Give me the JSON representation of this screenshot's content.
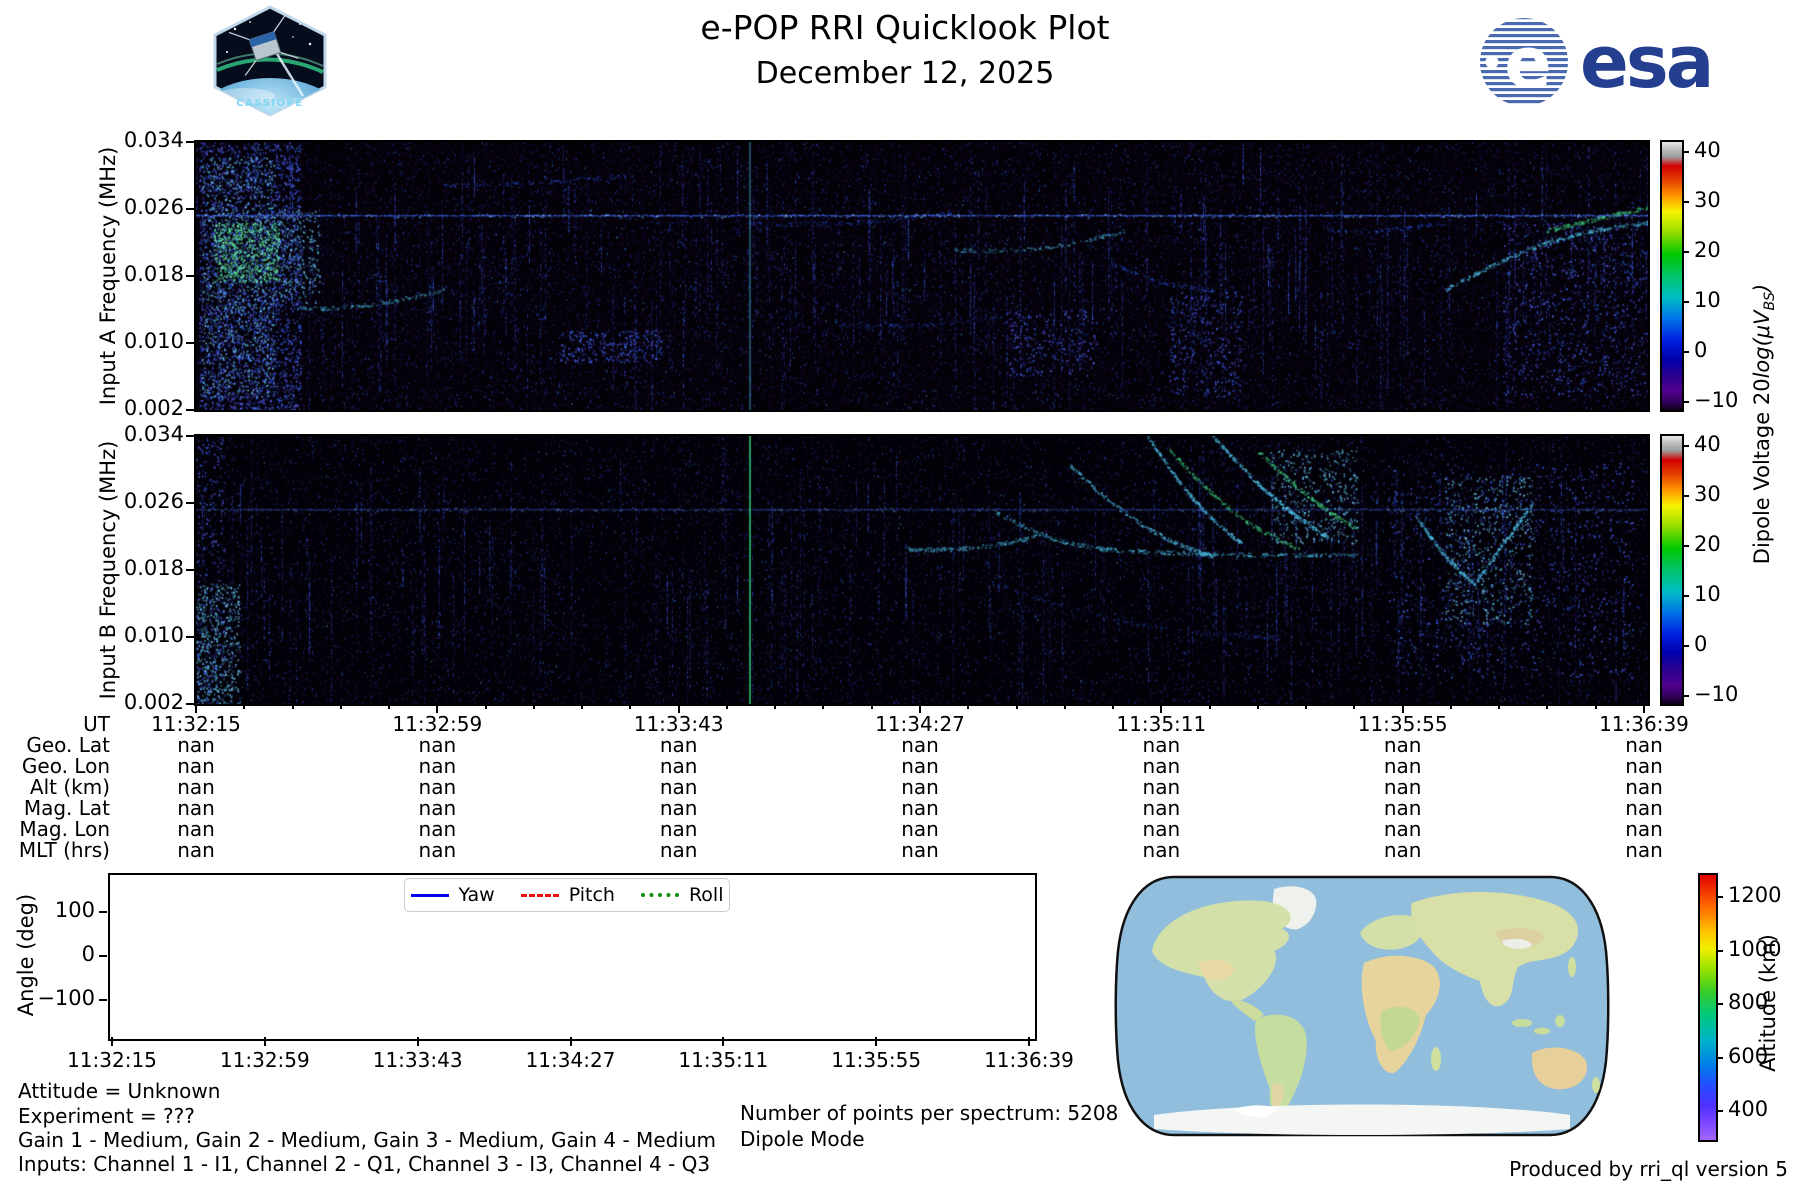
{
  "header": {
    "title": "e-POP RRI Quicklook Plot",
    "subtitle": "December 12, 2025",
    "cassiope_wordmark": "CASSIOPE",
    "esa_wordmark": "esa"
  },
  "colorbar_freq": {
    "label_prefix": "Dipole Voltage 20",
    "label_math": "log(μV",
    "label_sub": "BS",
    "label_close": ")",
    "ticks": [
      40,
      30,
      20,
      10,
      0,
      -10
    ],
    "ticks_display": [
      "40",
      "30",
      "20",
      "10",
      "0",
      "−10"
    ]
  },
  "panelA": {
    "ylabel": "Input A Frequency (MHz)",
    "yticks": [
      "0.034",
      "0.026",
      "0.018",
      "0.010",
      "0.002"
    ]
  },
  "panelB": {
    "ylabel": "Input B Frequency (MHz)",
    "yticks": [
      "0.034",
      "0.026",
      "0.018",
      "0.010",
      "0.002"
    ]
  },
  "ephemeris": {
    "row_labels": [
      "UT",
      "Geo. Lat",
      "Geo. Lon",
      "Alt (km)",
      "Mag. Lat",
      "Mag. Lon",
      "MLT (hrs)"
    ],
    "times": [
      "11:32:15",
      "11:32:59",
      "11:33:43",
      "11:34:27",
      "11:35:11",
      "11:35:55",
      "11:36:39"
    ],
    "nan_value": "nan"
  },
  "angle_plot": {
    "ylabel": "Angle (deg)",
    "yticks_display": [
      "100",
      "0",
      "−100"
    ],
    "yticks": [
      100,
      0,
      -100
    ],
    "xticks": [
      "11:32:15",
      "11:32:59",
      "11:33:43",
      "11:34:27",
      "11:35:11",
      "11:35:55",
      "11:36:39"
    ],
    "legend": [
      {
        "label": "Yaw",
        "color": "#0000ee",
        "style": "solid"
      },
      {
        "label": "Pitch",
        "color": "#ee1111",
        "style": "dashed"
      },
      {
        "label": "Roll",
        "color": "#0a8f0a",
        "style": "dotted"
      }
    ]
  },
  "map_panel": {
    "colorbar_label": "Altitude (km)",
    "colorbar_ticks": [
      1200,
      1000,
      800,
      600,
      400
    ]
  },
  "footer": {
    "attitude": "Attitude = Unknown",
    "experiment": "Experiment = ???",
    "gains": "Gain 1 - Medium, Gain 2 - Medium, Gain 3 - Medium, Gain 4 - Medium",
    "inputs": "Inputs: Channel 1 - I1, Channel 2 - Q1, Channel 3 - I3, Channel 4 - Q3",
    "points_per_spectrum": "Number of points per spectrum: 5208",
    "mode": "Dipole Mode",
    "produced_by": "Produced by rri_ql version 5"
  },
  "chart_data": [
    {
      "type": "heatmap",
      "panel": "Input A",
      "ylabel": "Input A Frequency (MHz)",
      "ylim_mhz": [
        0.002,
        0.034
      ],
      "yticks_mhz": [
        0.034,
        0.026,
        0.018,
        0.01,
        0.002
      ],
      "x_ut": [
        "11:32:15",
        "11:32:59",
        "11:33:43",
        "11:34:27",
        "11:35:11",
        "11:35:55",
        "11:36:39"
      ],
      "colorbar": {
        "label": "Dipole Voltage 20log(μV_BS)",
        "ticks": [
          40,
          30,
          20,
          10,
          0,
          -10
        ],
        "range": [
          -10,
          40
        ],
        "cmap": "nipy_spectral"
      },
      "features": {
        "background": "near-black with sparse blue/purple noise and vertical streaks",
        "horizontal_line_mhz": 0.025,
        "left_edge_broadband_burst": true,
        "bright_vertical_line_frac": 0.381,
        "right_side": "faint cyan traces, rising trace at far right"
      },
      "render": {
        "seed": 20251212,
        "bg": "#040109",
        "noise": 0.05,
        "streaks": 210,
        "hline": {
          "y": 0.272,
          "a": 0.85
        },
        "vline": {
          "x": 0.381,
          "rgb": [
            70,
            190,
            225
          ],
          "a": 0.5
        },
        "clusters": [
          {
            "x": 0.002,
            "y": 0.0,
            "w": 0.07,
            "h": 1.0,
            "n": 2600,
            "pal": "blue"
          },
          {
            "x": 0.004,
            "y": 0.05,
            "w": 0.05,
            "h": 0.9,
            "n": 900,
            "pal": "cyan"
          },
          {
            "x": 0.012,
            "y": 0.3,
            "w": 0.045,
            "h": 0.22,
            "n": 700,
            "pal": "green"
          },
          {
            "x": 0.055,
            "y": 0.25,
            "w": 0.03,
            "h": 0.35,
            "n": 260,
            "pal": "cyan"
          },
          {
            "x": 0.25,
            "y": 0.7,
            "w": 0.07,
            "h": 0.12,
            "n": 260,
            "pal": "blue"
          },
          {
            "x": 0.56,
            "y": 0.62,
            "w": 0.06,
            "h": 0.25,
            "n": 220,
            "pal": "blue"
          },
          {
            "x": 0.67,
            "y": 0.55,
            "w": 0.05,
            "h": 0.4,
            "n": 320,
            "pal": "blue"
          },
          {
            "x": 0.9,
            "y": 0.3,
            "w": 0.1,
            "h": 0.65,
            "n": 700,
            "pal": "blue"
          }
        ],
        "traces": [
          {
            "x0": 0.07,
            "x1": 0.17,
            "y0": 0.62,
            "y1": 0.55,
            "bend": 0.02,
            "n": 120,
            "pal": "cyan",
            "a": 0.5
          },
          {
            "x0": 0.17,
            "x1": 0.3,
            "y0": 0.16,
            "y1": 0.12,
            "bend": 0.01,
            "n": 90,
            "pal": "blue",
            "a": 0.45
          },
          {
            "x0": 0.38,
            "x1": 0.52,
            "y0": 0.3,
            "y1": 0.26,
            "bend": 0.02,
            "n": 110,
            "pal": "blue",
            "a": 0.4
          },
          {
            "x0": 0.44,
            "x1": 0.56,
            "y0": 0.68,
            "y1": 0.64,
            "bend": 0.02,
            "n": 90,
            "pal": "blue",
            "a": 0.35
          },
          {
            "x0": 0.52,
            "x1": 0.64,
            "y0": 0.4,
            "y1": 0.33,
            "bend": 0.03,
            "n": 130,
            "pal": "cyan",
            "a": 0.45
          },
          {
            "x0": 0.63,
            "x1": 0.7,
            "y0": 0.45,
            "y1": 0.55,
            "bend": 0.02,
            "n": 90,
            "pal": "blue",
            "a": 0.4
          },
          {
            "x0": 0.78,
            "x1": 0.86,
            "y0": 0.33,
            "y1": 0.3,
            "bend": 0.01,
            "n": 80,
            "pal": "blue",
            "a": 0.4
          },
          {
            "x0": 0.86,
            "x1": 1.0,
            "y0": 0.55,
            "y1": 0.3,
            "bend": -0.05,
            "n": 260,
            "pal": "cyan",
            "a": 0.6
          },
          {
            "x0": 0.93,
            "x1": 1.0,
            "y0": 0.33,
            "y1": 0.24,
            "bend": 0.0,
            "n": 160,
            "pal": "green",
            "a": 0.5
          }
        ]
      }
    },
    {
      "type": "heatmap",
      "panel": "Input B",
      "ylabel": "Input B Frequency (MHz)",
      "ylim_mhz": [
        0.002,
        0.034
      ],
      "yticks_mhz": [
        0.034,
        0.026,
        0.018,
        0.01,
        0.002
      ],
      "x_ut": [
        "11:32:15",
        "11:32:59",
        "11:33:43",
        "11:34:27",
        "11:35:11",
        "11:35:55",
        "11:36:39"
      ],
      "colorbar": {
        "label": "Dipole Voltage 20log(μV_BS)",
        "ticks": [
          40,
          30,
          20,
          10,
          0,
          -10
        ],
        "range": [
          -10,
          40
        ],
        "cmap": "nipy_spectral"
      },
      "features": {
        "background": "mostly dark, faint horizontal line at 0.025 MHz",
        "horizontal_line_mhz": 0.025,
        "left_edge_broadband_burst": false,
        "bright_vertical_line_frac": 0.381,
        "right_side": "dense cyan/green ionogram-like arcs and vertical streaks"
      },
      "render": {
        "seed": 42424242,
        "bg": "#030108",
        "noise": 0.04,
        "streaks": 150,
        "hline": {
          "y": 0.272,
          "a": 0.45
        },
        "vline": {
          "x": 0.381,
          "rgb": [
            60,
            225,
            130
          ],
          "a": 0.85
        },
        "clusters": [
          {
            "x": 0.0,
            "y": 0.55,
            "w": 0.03,
            "h": 0.45,
            "n": 500,
            "pal": "cyan"
          },
          {
            "x": 0.0,
            "y": 0.0,
            "w": 0.02,
            "h": 1.0,
            "n": 300,
            "pal": "blue"
          },
          {
            "x": 0.82,
            "y": 0.1,
            "w": 0.17,
            "h": 0.8,
            "n": 900,
            "pal": "blue"
          },
          {
            "x": 0.86,
            "y": 0.15,
            "w": 0.06,
            "h": 0.55,
            "n": 500,
            "pal": "cyan"
          },
          {
            "x": 0.74,
            "y": 0.05,
            "w": 0.06,
            "h": 0.35,
            "n": 400,
            "pal": "cyan"
          }
        ],
        "traces": [
          {
            "x0": 0.49,
            "x1": 0.58,
            "y0": 0.42,
            "y1": 0.37,
            "bend": 0.02,
            "n": 140,
            "pal": "cyan",
            "a": 0.55
          },
          {
            "x0": 0.55,
            "x1": 0.63,
            "y0": 0.28,
            "y1": 0.42,
            "bend": 0.03,
            "n": 130,
            "pal": "cyan",
            "a": 0.5
          },
          {
            "x0": 0.6,
            "x1": 0.7,
            "y0": 0.1,
            "y1": 0.45,
            "bend": 0.05,
            "n": 200,
            "pal": "cyan",
            "a": 0.6
          },
          {
            "x0": 0.62,
            "x1": 0.8,
            "y0": 0.42,
            "y1": 0.44,
            "bend": 0.01,
            "n": 220,
            "pal": "cyan",
            "a": 0.55
          },
          {
            "x0": 0.655,
            "x1": 0.72,
            "y0": 0.0,
            "y1": 0.4,
            "bend": 0.04,
            "n": 200,
            "pal": "cyan",
            "a": 0.65
          },
          {
            "x0": 0.67,
            "x1": 0.76,
            "y0": 0.05,
            "y1": 0.42,
            "bend": 0.05,
            "n": 180,
            "pal": "green",
            "a": 0.5
          },
          {
            "x0": 0.7,
            "x1": 0.78,
            "y0": 0.0,
            "y1": 0.38,
            "bend": 0.03,
            "n": 220,
            "pal": "cyan",
            "a": 0.7
          },
          {
            "x0": 0.73,
            "x1": 0.8,
            "y0": 0.05,
            "y1": 0.35,
            "bend": 0.02,
            "n": 160,
            "pal": "green",
            "a": 0.55
          },
          {
            "x0": 0.84,
            "x1": 0.88,
            "y0": 0.3,
            "y1": 0.55,
            "bend": 0.02,
            "n": 140,
            "pal": "cyan",
            "a": 0.6
          },
          {
            "x0": 0.88,
            "x1": 0.92,
            "y0": 0.55,
            "y1": 0.25,
            "bend": 0.0,
            "n": 140,
            "pal": "cyan",
            "a": 0.6
          },
          {
            "x0": 0.55,
            "x1": 0.75,
            "y0": 0.55,
            "y1": 0.75,
            "bend": 0.05,
            "n": 120,
            "pal": "blue",
            "a": 0.35
          }
        ]
      }
    },
    {
      "type": "line",
      "ylabel": "Angle (deg)",
      "yticks": [
        100,
        0,
        -100
      ],
      "x_ut": [
        "11:32:15",
        "11:32:59",
        "11:33:43",
        "11:34:27",
        "11:35:11",
        "11:35:55",
        "11:36:39"
      ],
      "series": [
        {
          "name": "Yaw",
          "color": "blue",
          "linestyle": "solid",
          "values": []
        },
        {
          "name": "Pitch",
          "color": "red",
          "linestyle": "dashed",
          "values": []
        },
        {
          "name": "Roll",
          "color": "green",
          "linestyle": "dotted",
          "values": []
        }
      ],
      "note": "no attitude data plotted (Attitude = Unknown)"
    },
    {
      "type": "map",
      "projection": "robinson-like world map",
      "colorbar": {
        "label": "Altitude (km)",
        "ticks": [
          1200,
          1000,
          800,
          600,
          400
        ],
        "range": [
          300,
          1290
        ],
        "cmap": "rainbow"
      },
      "note": "no ground track plotted"
    }
  ]
}
